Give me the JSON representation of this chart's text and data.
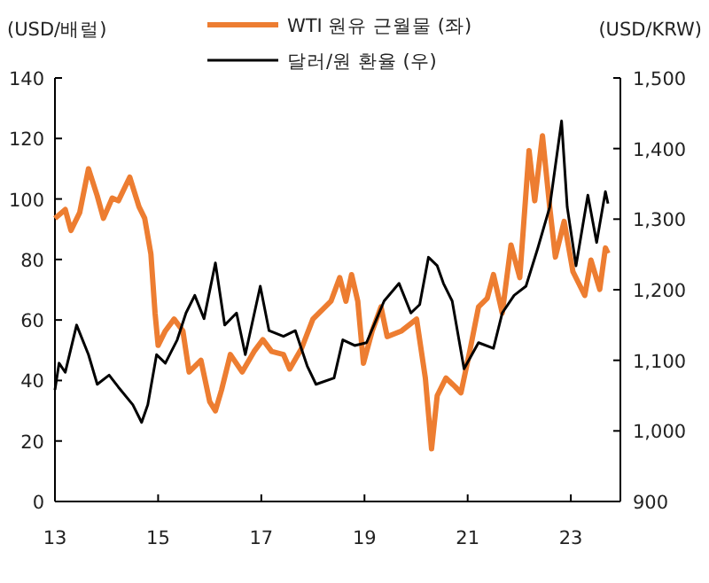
{
  "chart_data": {
    "type": "line",
    "ylabel": "(USD/배럴)",
    "y2label": "(USD/KRW)",
    "legend": "top",
    "grid": false,
    "line_style": "solid",
    "xlim": [
      2013,
      2023.96
    ],
    "xticks": [
      {
        "value": 2013,
        "label": "13"
      },
      {
        "value": 2015,
        "label": "15"
      },
      {
        "value": 2017,
        "label": "17"
      },
      {
        "value": 2019,
        "label": "19"
      },
      {
        "value": 2021,
        "label": "21"
      },
      {
        "value": 2023,
        "label": "23"
      }
    ],
    "ylim": [
      0,
      140
    ],
    "yticks": [
      0,
      20,
      40,
      60,
      80,
      100,
      120,
      140
    ],
    "y2lim": [
      900,
      1500
    ],
    "y2ticks": [
      {
        "value": 900,
        "label": "900"
      },
      {
        "value": 1000,
        "label": "1,000"
      },
      {
        "value": 1100,
        "label": "1,100"
      },
      {
        "value": 1200,
        "label": "1,200"
      },
      {
        "value": 1300,
        "label": "1,300"
      },
      {
        "value": 1400,
        "label": "1,400"
      },
      {
        "value": 1500,
        "label": "1,500"
      }
    ],
    "series": [
      {
        "name": "WTI 원유 근월물 (좌)",
        "color": "#ed7d31",
        "x": [
          2013.0,
          2013.2,
          2013.31,
          2013.48,
          2013.65,
          2013.82,
          2013.94,
          2014.11,
          2014.23,
          2014.45,
          2014.63,
          2014.74,
          2014.86,
          2014.94,
          2015.0,
          2015.14,
          2015.31,
          2015.48,
          2015.6,
          2015.83,
          2016.0,
          2016.11,
          2016.23,
          2016.4,
          2016.63,
          2016.86,
          2017.03,
          2017.2,
          2017.43,
          2017.55,
          2017.78,
          2018.0,
          2018.35,
          2018.52,
          2018.64,
          2018.75,
          2018.87,
          2018.98,
          2019.15,
          2019.32,
          2019.44,
          2019.72,
          2020.01,
          2020.18,
          2020.3,
          2020.41,
          2020.58,
          2020.76,
          2020.87,
          2021.04,
          2021.21,
          2021.38,
          2021.5,
          2021.67,
          2021.84,
          2022.01,
          2022.19,
          2022.3,
          2022.45,
          2022.59,
          2022.7,
          2022.87,
          2023.04,
          2023.27,
          2023.39,
          2023.56,
          2023.67,
          2023.72
        ],
        "values": [
          93.6,
          96.5,
          89.6,
          95.5,
          110,
          101,
          93.6,
          100.3,
          99.4,
          107.2,
          97.4,
          93.6,
          81.8,
          62.3,
          51.6,
          56.4,
          60.3,
          56.4,
          42.8,
          46.7,
          33,
          30,
          36.9,
          48.6,
          42.8,
          49.6,
          53.5,
          49.6,
          48.6,
          43.8,
          50.6,
          60.3,
          66.2,
          74,
          66.2,
          75,
          66.2,
          45.7,
          56.4,
          64.3,
          54.5,
          56.4,
          60.3,
          40.8,
          17.4,
          35,
          40.8,
          37.9,
          35.9,
          49.6,
          64.3,
          67.2,
          75,
          62.3,
          84.8,
          74,
          116,
          99.4,
          120.9,
          97.4,
          80.8,
          92.6,
          76,
          68.1,
          79.8,
          70.1,
          83.8,
          82
        ]
      },
      {
        "name": "달러/원 환율 (우)",
        "color": "#000000",
        "axis": "y2",
        "x": [
          2013.0,
          2013.08,
          2013.2,
          2013.42,
          2013.65,
          2013.82,
          2014.05,
          2014.23,
          2014.51,
          2014.68,
          2014.8,
          2014.97,
          2015.14,
          2015.37,
          2015.54,
          2015.71,
          2015.89,
          2016.11,
          2016.29,
          2016.52,
          2016.69,
          2016.98,
          2017.15,
          2017.43,
          2017.66,
          2017.89,
          2018.06,
          2018.41,
          2018.58,
          2018.81,
          2019.04,
          2019.38,
          2019.67,
          2019.9,
          2020.07,
          2020.24,
          2020.41,
          2020.53,
          2020.7,
          2020.93,
          2021.21,
          2021.5,
          2021.67,
          2021.9,
          2022.13,
          2022.36,
          2022.59,
          2022.82,
          2022.93,
          2023.1,
          2023.33,
          2023.5,
          2023.67,
          2023.72
        ],
        "values": [
          1058,
          1096,
          1083,
          1150,
          1108,
          1066,
          1079,
          1062,
          1037,
          1012,
          1037,
          1108,
          1096,
          1129,
          1167,
          1192,
          1159,
          1238,
          1150,
          1167,
          1108,
          1205,
          1142,
          1134,
          1142,
          1092,
          1066,
          1075,
          1129,
          1121,
          1125,
          1184,
          1209,
          1167,
          1179,
          1246,
          1234,
          1209,
          1184,
          1088,
          1125,
          1117,
          1167,
          1192,
          1205,
          1259,
          1317,
          1439,
          1317,
          1234,
          1334,
          1267,
          1339,
          1322
        ]
      }
    ]
  }
}
